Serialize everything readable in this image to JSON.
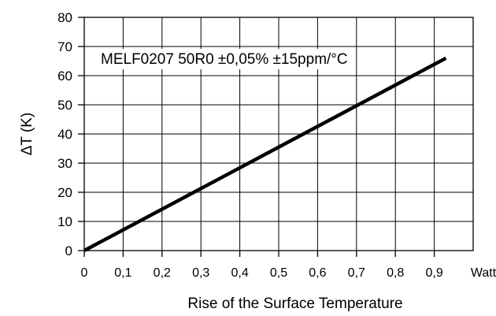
{
  "chart_data": {
    "type": "line",
    "annotation": "MELF0207 50R0 ±0,05% ±15ppm/°C",
    "xlabel": "Rise of the Surface Temperature",
    "ylabel": "ΔT  (K)",
    "x_unit": "Watt",
    "xlim": [
      0,
      1.0
    ],
    "ylim": [
      0,
      80
    ],
    "x_ticks": [
      "0",
      "0,1",
      "0,2",
      "0,3",
      "0,4",
      "0,5",
      "0,6",
      "0,7",
      "0,8",
      "0,9"
    ],
    "x_tick_values": [
      0,
      0.1,
      0.2,
      0.3,
      0.4,
      0.5,
      0.6,
      0.7,
      0.8,
      0.9
    ],
    "y_ticks": [
      "0",
      "10",
      "20",
      "30",
      "40",
      "50",
      "60",
      "70",
      "80"
    ],
    "y_tick_values": [
      0,
      10,
      20,
      30,
      40,
      50,
      60,
      70,
      80
    ],
    "grid": true,
    "series": [
      {
        "x": [
          0,
          0.93
        ],
        "y": [
          0,
          66
        ],
        "color": "#000000"
      }
    ]
  }
}
